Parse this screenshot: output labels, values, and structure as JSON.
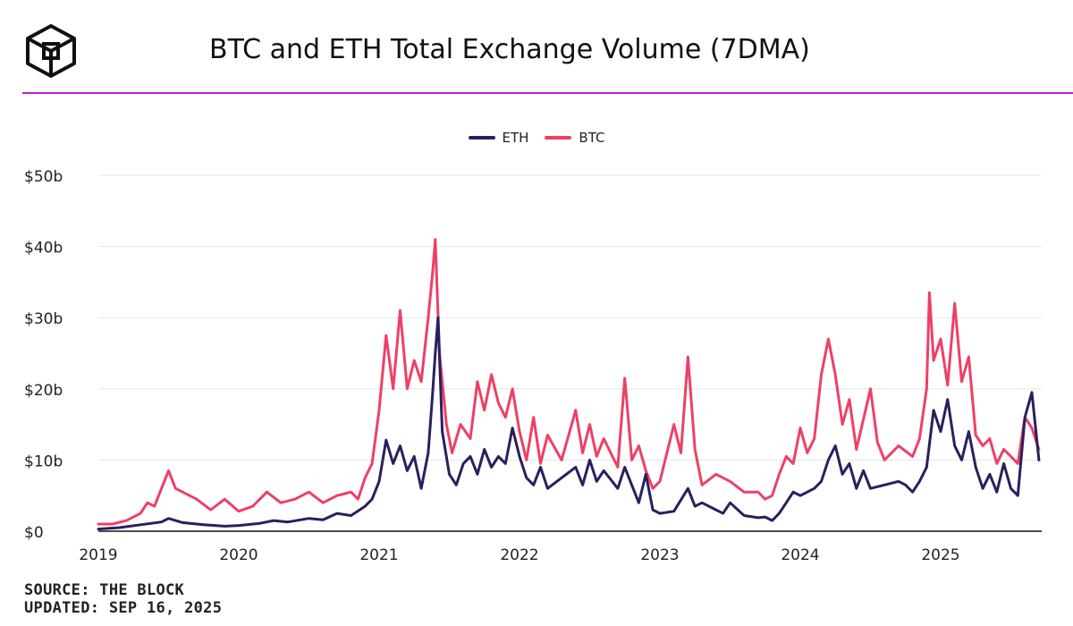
{
  "header": {
    "title": "BTC and ETH Total Exchange Volume (7DMA)",
    "logo_icon": "the-block-cube-icon",
    "accent_color": "#c41fd1"
  },
  "footer": {
    "source": "SOURCE: THE BLOCK",
    "updated": "UPDATED: SEP 16, 2025"
  },
  "chart_data": {
    "type": "line",
    "title": "BTC and ETH Total Exchange Volume (7DMA)",
    "xlabel": "",
    "ylabel": "",
    "grid": true,
    "legend_position": "top-center",
    "x_ticks": [
      "2019",
      "2020",
      "2021",
      "2022",
      "2023",
      "2024",
      "2025"
    ],
    "y_ticks": [
      "$0",
      "$10b",
      "$20b",
      "$30b",
      "$40b",
      "$50b"
    ],
    "xlim": [
      2019.0,
      2025.72
    ],
    "ylim": [
      0,
      50
    ],
    "y_unit": "USD billions",
    "series": [
      {
        "name": "ETH",
        "color": "#2a1f5e",
        "points": [
          [
            2019.0,
            0.3
          ],
          [
            2019.15,
            0.5
          ],
          [
            2019.3,
            0.9
          ],
          [
            2019.45,
            1.3
          ],
          [
            2019.5,
            1.8
          ],
          [
            2019.6,
            1.2
          ],
          [
            2019.75,
            0.9
          ],
          [
            2019.9,
            0.7
          ],
          [
            2020.0,
            0.8
          ],
          [
            2020.15,
            1.1
          ],
          [
            2020.25,
            1.5
          ],
          [
            2020.35,
            1.3
          ],
          [
            2020.5,
            1.8
          ],
          [
            2020.6,
            1.6
          ],
          [
            2020.7,
            2.5
          ],
          [
            2020.8,
            2.2
          ],
          [
            2020.9,
            3.5
          ],
          [
            2020.95,
            4.5
          ],
          [
            2021.0,
            7.0
          ],
          [
            2021.05,
            12.8
          ],
          [
            2021.1,
            9.5
          ],
          [
            2021.15,
            12.0
          ],
          [
            2021.2,
            8.5
          ],
          [
            2021.25,
            10.5
          ],
          [
            2021.3,
            6.0
          ],
          [
            2021.35,
            11.0
          ],
          [
            2021.38,
            19.0
          ],
          [
            2021.4,
            25.0
          ],
          [
            2021.42,
            30.0
          ],
          [
            2021.45,
            14.0
          ],
          [
            2021.5,
            8.0
          ],
          [
            2021.55,
            6.5
          ],
          [
            2021.6,
            9.5
          ],
          [
            2021.65,
            10.5
          ],
          [
            2021.7,
            8.0
          ],
          [
            2021.75,
            11.5
          ],
          [
            2021.8,
            9.0
          ],
          [
            2021.85,
            10.5
          ],
          [
            2021.9,
            9.5
          ],
          [
            2021.95,
            14.5
          ],
          [
            2022.0,
            10.5
          ],
          [
            2022.05,
            7.5
          ],
          [
            2022.1,
            6.5
          ],
          [
            2022.15,
            9.0
          ],
          [
            2022.2,
            6.0
          ],
          [
            2022.3,
            7.5
          ],
          [
            2022.4,
            9.0
          ],
          [
            2022.45,
            6.5
          ],
          [
            2022.5,
            10.0
          ],
          [
            2022.55,
            7.0
          ],
          [
            2022.6,
            8.5
          ],
          [
            2022.7,
            6.0
          ],
          [
            2022.75,
            9.0
          ],
          [
            2022.85,
            4.0
          ],
          [
            2022.9,
            8.0
          ],
          [
            2022.95,
            3.0
          ],
          [
            2023.0,
            2.5
          ],
          [
            2023.1,
            2.8
          ],
          [
            2023.2,
            6.0
          ],
          [
            2023.25,
            3.5
          ],
          [
            2023.3,
            4.0
          ],
          [
            2023.4,
            3.0
          ],
          [
            2023.45,
            2.5
          ],
          [
            2023.5,
            4.0
          ],
          [
            2023.6,
            2.2
          ],
          [
            2023.7,
            1.9
          ],
          [
            2023.75,
            2.0
          ],
          [
            2023.8,
            1.5
          ],
          [
            2023.85,
            2.5
          ],
          [
            2023.9,
            4.0
          ],
          [
            2023.95,
            5.5
          ],
          [
            2024.0,
            5.0
          ],
          [
            2024.1,
            6.0
          ],
          [
            2024.15,
            7.0
          ],
          [
            2024.2,
            10.0
          ],
          [
            2024.25,
            12.0
          ],
          [
            2024.3,
            8.0
          ],
          [
            2024.35,
            9.5
          ],
          [
            2024.4,
            6.0
          ],
          [
            2024.45,
            8.5
          ],
          [
            2024.5,
            6.0
          ],
          [
            2024.6,
            6.5
          ],
          [
            2024.7,
            7.0
          ],
          [
            2024.75,
            6.5
          ],
          [
            2024.8,
            5.5
          ],
          [
            2024.85,
            7.0
          ],
          [
            2024.9,
            9.0
          ],
          [
            2024.95,
            17.0
          ],
          [
            2025.0,
            14.0
          ],
          [
            2025.05,
            18.5
          ],
          [
            2025.1,
            12.0
          ],
          [
            2025.15,
            10.0
          ],
          [
            2025.2,
            14.0
          ],
          [
            2025.25,
            9.0
          ],
          [
            2025.3,
            6.0
          ],
          [
            2025.35,
            8.0
          ],
          [
            2025.4,
            5.5
          ],
          [
            2025.45,
            9.5
          ],
          [
            2025.5,
            6.0
          ],
          [
            2025.55,
            5.0
          ],
          [
            2025.6,
            16.0
          ],
          [
            2025.65,
            19.5
          ],
          [
            2025.7,
            10.0
          ]
        ]
      },
      {
        "name": "BTC",
        "color": "#ee4066",
        "points": [
          [
            2019.0,
            1.0
          ],
          [
            2019.1,
            1.0
          ],
          [
            2019.2,
            1.5
          ],
          [
            2019.3,
            2.5
          ],
          [
            2019.35,
            4.0
          ],
          [
            2019.4,
            3.5
          ],
          [
            2019.45,
            6.0
          ],
          [
            2019.5,
            8.5
          ],
          [
            2019.55,
            6.0
          ],
          [
            2019.6,
            5.5
          ],
          [
            2019.7,
            4.5
          ],
          [
            2019.8,
            3.0
          ],
          [
            2019.9,
            4.5
          ],
          [
            2020.0,
            2.8
          ],
          [
            2020.1,
            3.5
          ],
          [
            2020.2,
            5.5
          ],
          [
            2020.3,
            4.0
          ],
          [
            2020.4,
            4.5
          ],
          [
            2020.5,
            5.5
          ],
          [
            2020.6,
            4.0
          ],
          [
            2020.7,
            5.0
          ],
          [
            2020.8,
            5.5
          ],
          [
            2020.85,
            4.5
          ],
          [
            2020.9,
            7.5
          ],
          [
            2020.95,
            9.5
          ],
          [
            2021.0,
            17.0
          ],
          [
            2021.05,
            27.5
          ],
          [
            2021.1,
            20.0
          ],
          [
            2021.15,
            31.0
          ],
          [
            2021.2,
            20.0
          ],
          [
            2021.25,
            24.0
          ],
          [
            2021.3,
            21.0
          ],
          [
            2021.35,
            30.0
          ],
          [
            2021.38,
            36.0
          ],
          [
            2021.4,
            41.0
          ],
          [
            2021.43,
            25.0
          ],
          [
            2021.48,
            15.0
          ],
          [
            2021.52,
            11.0
          ],
          [
            2021.58,
            15.0
          ],
          [
            2021.65,
            13.0
          ],
          [
            2021.7,
            21.0
          ],
          [
            2021.75,
            17.0
          ],
          [
            2021.8,
            22.0
          ],
          [
            2021.85,
            18.0
          ],
          [
            2021.9,
            16.0
          ],
          [
            2021.95,
            20.0
          ],
          [
            2022.0,
            14.0
          ],
          [
            2022.05,
            10.0
          ],
          [
            2022.1,
            16.0
          ],
          [
            2022.15,
            9.5
          ],
          [
            2022.2,
            13.5
          ],
          [
            2022.3,
            10.0
          ],
          [
            2022.4,
            17.0
          ],
          [
            2022.45,
            11.0
          ],
          [
            2022.5,
            15.0
          ],
          [
            2022.55,
            10.5
          ],
          [
            2022.6,
            13.0
          ],
          [
            2022.7,
            9.0
          ],
          [
            2022.75,
            21.5
          ],
          [
            2022.8,
            10.0
          ],
          [
            2022.85,
            12.0
          ],
          [
            2022.9,
            8.5
          ],
          [
            2022.95,
            6.0
          ],
          [
            2023.0,
            7.0
          ],
          [
            2023.1,
            15.0
          ],
          [
            2023.15,
            11.0
          ],
          [
            2023.2,
            24.5
          ],
          [
            2023.25,
            11.5
          ],
          [
            2023.3,
            6.5
          ],
          [
            2023.4,
            8.0
          ],
          [
            2023.5,
            7.0
          ],
          [
            2023.6,
            5.5
          ],
          [
            2023.7,
            5.5
          ],
          [
            2023.75,
            4.5
          ],
          [
            2023.8,
            5.0
          ],
          [
            2023.85,
            8.0
          ],
          [
            2023.9,
            10.5
          ],
          [
            2023.95,
            9.5
          ],
          [
            2024.0,
            14.5
          ],
          [
            2024.05,
            11.0
          ],
          [
            2024.1,
            13.0
          ],
          [
            2024.15,
            22.0
          ],
          [
            2024.2,
            27.0
          ],
          [
            2024.25,
            22.0
          ],
          [
            2024.3,
            15.0
          ],
          [
            2024.35,
            18.5
          ],
          [
            2024.4,
            11.5
          ],
          [
            2024.5,
            20.0
          ],
          [
            2024.55,
            12.5
          ],
          [
            2024.6,
            10.0
          ],
          [
            2024.7,
            12.0
          ],
          [
            2024.8,
            10.5
          ],
          [
            2024.85,
            13.0
          ],
          [
            2024.9,
            20.0
          ],
          [
            2024.92,
            33.5
          ],
          [
            2024.95,
            24.0
          ],
          [
            2025.0,
            27.0
          ],
          [
            2025.05,
            20.5
          ],
          [
            2025.1,
            32.0
          ],
          [
            2025.15,
            21.0
          ],
          [
            2025.2,
            24.5
          ],
          [
            2025.25,
            13.5
          ],
          [
            2025.3,
            12.0
          ],
          [
            2025.35,
            13.0
          ],
          [
            2025.4,
            9.5
          ],
          [
            2025.45,
            11.5
          ],
          [
            2025.5,
            10.5
          ],
          [
            2025.55,
            9.5
          ],
          [
            2025.6,
            16.0
          ],
          [
            2025.65,
            14.5
          ],
          [
            2025.7,
            11.5
          ]
        ]
      }
    ]
  }
}
